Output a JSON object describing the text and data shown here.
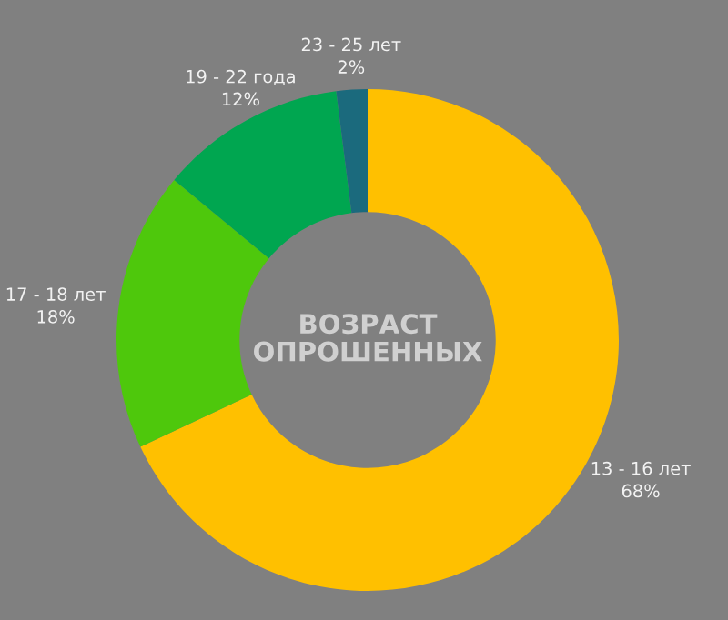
{
  "chart_data": {
    "type": "donut",
    "title": "ВОЗРАСТ\nОПРОШЕННЫХ",
    "categories": [
      "13 - 16 лет",
      "17 - 18 лет",
      "19 - 22 года",
      "23 - 25 лет"
    ],
    "values": [
      68,
      18,
      12,
      2
    ],
    "colors": [
      "#ffc000",
      "#4ec80c",
      "#00a650",
      "#1b6a7d"
    ],
    "value_labels": [
      "68%",
      "18%",
      "12%",
      "2%"
    ],
    "legend": false
  }
}
